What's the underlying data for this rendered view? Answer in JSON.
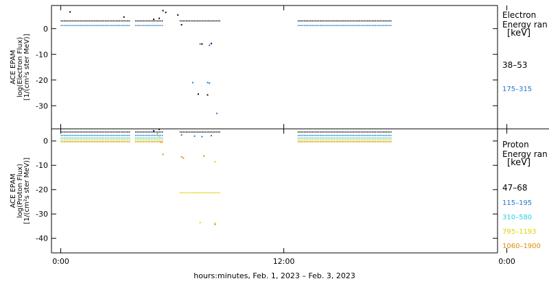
{
  "colors": {
    "black": "#000000",
    "blue": "#1f77c8",
    "cyan": "#22d0e0",
    "yellow": "#d7d700",
    "orange": "#e08a00"
  },
  "chart_data": [
    {
      "type": "scatter",
      "ylabel": [
        "ACE EPAM",
        "log(Electron Flux)",
        "[1/(cm²s ster MeV)]"
      ],
      "ylim": [
        -39,
        9
      ],
      "yticks": [
        0,
        -10,
        -20,
        -30
      ],
      "legend_title": [
        "Electron",
        "Energy ran",
        "[keV]"
      ],
      "series": [
        {
          "name": "38–53",
          "color": "#000000",
          "segments": [
            [
              0.0,
              3.75,
              3.0
            ],
            [
              4.0,
              5.5,
              3.0
            ],
            [
              6.4,
              8.6,
              3.0
            ],
            [
              12.75,
              17.8,
              3.0
            ]
          ],
          "points": [
            [
              0.5,
              6.5
            ],
            [
              3.4,
              4.5
            ],
            [
              5.0,
              3.6
            ],
            [
              5.3,
              4.0
            ],
            [
              5.5,
              7.0
            ],
            [
              5.65,
              6.3
            ],
            [
              6.3,
              5.3
            ],
            [
              6.5,
              1.5
            ],
            [
              7.6,
              -6.0
            ],
            [
              8.1,
              -5.8
            ],
            [
              7.4,
              -25.5
            ],
            [
              7.9,
              -25.8
            ]
          ]
        },
        {
          "name": "175–315",
          "color": "#1f77c8",
          "segments": [
            [
              0.0,
              3.75,
              1.2
            ],
            [
              4.0,
              5.5,
              1.2
            ],
            [
              12.75,
              17.8,
              1.2
            ]
          ],
          "points": [
            [
              7.5,
              -6.0
            ],
            [
              8.0,
              -6.5
            ],
            [
              7.1,
              -21.0
            ],
            [
              7.9,
              -21.0
            ],
            [
              8.0,
              -21.2
            ],
            [
              8.4,
              -33.0
            ]
          ]
        }
      ]
    },
    {
      "type": "scatter",
      "ylabel": [
        "ACE EPAM",
        "log(Proton Flux)",
        "[1/(cm²s ster MeV)]"
      ],
      "ylim": [
        -46,
        5
      ],
      "yticks": [
        0,
        -10,
        -20,
        -30,
        -40
      ],
      "legend_title": [
        "Proton",
        "Energy ran",
        "[keV]"
      ],
      "series": [
        {
          "name": "47–68",
          "color": "#000000",
          "segments": [
            [
              0.0,
              3.75,
              3.7
            ],
            [
              4.0,
              5.5,
              3.7
            ],
            [
              6.4,
              8.6,
              3.7
            ],
            [
              12.75,
              17.8,
              3.7
            ]
          ],
          "points": [
            [
              5.0,
              4.2
            ],
            [
              5.3,
              4.8
            ]
          ]
        },
        {
          "name": "115–195",
          "color": "#1f77c8",
          "segments": [
            [
              0.0,
              3.75,
              2.3
            ],
            [
              4.0,
              5.5,
              2.3
            ],
            [
              12.75,
              17.8,
              2.3
            ]
          ],
          "points": [
            [
              6.5,
              2.5
            ],
            [
              7.2,
              2.0
            ],
            [
              7.6,
              1.8
            ],
            [
              8.1,
              2.2
            ]
          ]
        },
        {
          "name": "310–580",
          "color": "#22d0e0",
          "segments": [
            [
              0.0,
              3.75,
              1.2
            ],
            [
              4.0,
              5.5,
              1.2
            ],
            [
              12.75,
              17.8,
              1.2
            ]
          ],
          "points": [
            [
              5.2,
              3.0
            ]
          ]
        },
        {
          "name": "795–1193",
          "color": "#d7d700",
          "segments": [
            [
              0.0,
              3.75,
              0.4
            ],
            [
              4.0,
              5.5,
              0.4
            ],
            [
              6.4,
              8.6,
              -21.3
            ],
            [
              12.75,
              17.8,
              0.4
            ]
          ],
          "points": [
            [
              5.3,
              2.0
            ],
            [
              8.3,
              -8.5
            ],
            [
              7.5,
              -33.5
            ],
            [
              8.3,
              -33.8
            ]
          ]
        },
        {
          "name": "1060–1900",
          "color": "#e08a00",
          "segments": [
            [
              0.0,
              3.75,
              -0.3
            ],
            [
              4.0,
              5.5,
              -0.3
            ],
            [
              12.75,
              17.8,
              -0.3
            ]
          ],
          "points": [
            [
              5.4,
              -0.5
            ],
            [
              5.5,
              -5.5
            ],
            [
              6.5,
              -6.5
            ],
            [
              6.6,
              -7.0
            ],
            [
              7.7,
              -6.2
            ],
            [
              8.3,
              -34.3
            ]
          ]
        }
      ]
    }
  ],
  "xaxis": {
    "xlim": [
      -0.5,
      23.5
    ],
    "ticks": [
      {
        "x": 0,
        "label": "0:00"
      },
      {
        "x": 12,
        "label": "12:00"
      },
      {
        "x": 24,
        "label": "0:00"
      }
    ],
    "label": "hours:minutes, Feb.  1, 2023 – Feb.  3, 2023"
  }
}
